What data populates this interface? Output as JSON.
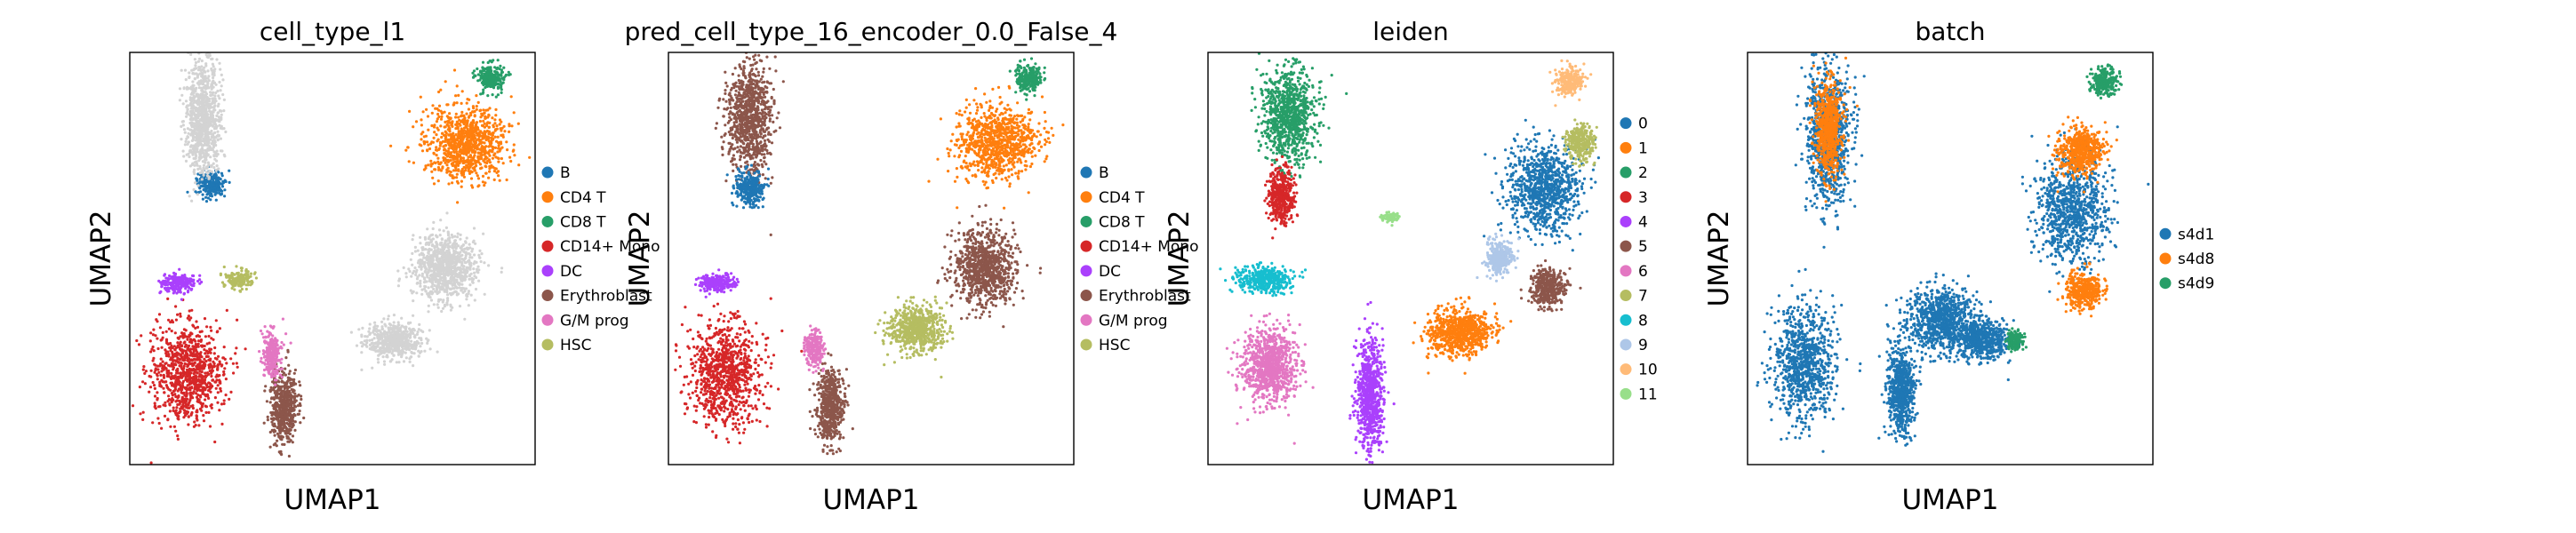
{
  "figure": {
    "background": "#ffffff"
  },
  "chart_data": [
    {
      "type": "scatter",
      "title": "cell_type_l1",
      "xlabel": "UMAP1",
      "ylabel": "UMAP2",
      "legend_position": "right",
      "grid": false,
      "categories": [
        "B",
        "CD4 T",
        "CD8 T",
        "CD14+ Mono",
        "DC",
        "Erythroblast",
        "G/M prog",
        "HSC"
      ],
      "colors": [
        "#1f77b4",
        "#ff7f0e",
        "#279e68",
        "#d62728",
        "#aa40fc",
        "#8c564b",
        "#e377c2",
        "#b5bd61"
      ],
      "clusters": [
        {
          "category": "B",
          "x": 0.2,
          "y": 0.68,
          "rx": 0.03,
          "ry": 0.03
        },
        {
          "category": "CD4 T",
          "x": 0.83,
          "y": 0.78,
          "rx": 0.09,
          "ry": 0.08
        },
        {
          "category": "CD8 T",
          "x": 0.89,
          "y": 0.94,
          "rx": 0.03,
          "ry": 0.03
        },
        {
          "category": "CD14+ Mono",
          "x": 0.14,
          "y": 0.22,
          "rx": 0.08,
          "ry": 0.11
        },
        {
          "category": "DC",
          "x": 0.12,
          "y": 0.44,
          "rx": 0.04,
          "ry": 0.02
        },
        {
          "category": "Erythroblast",
          "x": 0.38,
          "y": 0.14,
          "rx": 0.03,
          "ry": 0.08
        },
        {
          "category": "G/M prog",
          "x": 0.35,
          "y": 0.27,
          "rx": 0.02,
          "ry": 0.05
        },
        {
          "category": "HSC",
          "x": 0.27,
          "y": 0.45,
          "rx": 0.03,
          "ry": 0.02
        },
        {
          "category": "other",
          "x": 0.18,
          "y": 0.84,
          "rx": 0.04,
          "ry": 0.12
        },
        {
          "category": "other",
          "x": 0.78,
          "y": 0.48,
          "rx": 0.07,
          "ry": 0.07
        },
        {
          "category": "other",
          "x": 0.65,
          "y": 0.3,
          "rx": 0.06,
          "ry": 0.04
        }
      ]
    },
    {
      "type": "scatter",
      "title": "pred_cell_type_16_encoder_0.0_False_4",
      "xlabel": "UMAP1",
      "ylabel": "UMAP2",
      "legend_position": "right",
      "grid": false,
      "categories": [
        "B",
        "CD4 T",
        "CD8 T",
        "CD14+ Mono",
        "DC",
        "Erythroblast",
        "G/M prog",
        "HSC"
      ],
      "colors": [
        "#1f77b4",
        "#ff7f0e",
        "#279e68",
        "#d62728",
        "#aa40fc",
        "#8c564b",
        "#e377c2",
        "#b5bd61"
      ],
      "clusters": [
        {
          "category": "Erythroblast",
          "x": 0.2,
          "y": 0.84,
          "rx": 0.05,
          "ry": 0.12
        },
        {
          "category": "B",
          "x": 0.2,
          "y": 0.67,
          "rx": 0.03,
          "ry": 0.04
        },
        {
          "category": "CD4 T",
          "x": 0.81,
          "y": 0.78,
          "rx": 0.09,
          "ry": 0.08
        },
        {
          "category": "CD8 T",
          "x": 0.89,
          "y": 0.94,
          "rx": 0.03,
          "ry": 0.03
        },
        {
          "category": "CD14+ Mono",
          "x": 0.14,
          "y": 0.22,
          "rx": 0.08,
          "ry": 0.11
        },
        {
          "category": "DC",
          "x": 0.12,
          "y": 0.44,
          "rx": 0.04,
          "ry": 0.02
        },
        {
          "category": "Erythroblast",
          "x": 0.78,
          "y": 0.48,
          "rx": 0.07,
          "ry": 0.08
        },
        {
          "category": "Erythroblast",
          "x": 0.4,
          "y": 0.14,
          "rx": 0.03,
          "ry": 0.08
        },
        {
          "category": "HSC",
          "x": 0.61,
          "y": 0.33,
          "rx": 0.06,
          "ry": 0.05
        },
        {
          "category": "G/M prog",
          "x": 0.36,
          "y": 0.28,
          "rx": 0.02,
          "ry": 0.04
        }
      ]
    },
    {
      "type": "scatter",
      "title": "leiden",
      "xlabel": "UMAP1",
      "ylabel": "UMAP2",
      "legend_position": "right",
      "grid": false,
      "categories": [
        "0",
        "1",
        "2",
        "3",
        "4",
        "5",
        "6",
        "7",
        "8",
        "9",
        "10",
        "11"
      ],
      "colors": [
        "#1f77b4",
        "#ff7f0e",
        "#279e68",
        "#d62728",
        "#aa40fc",
        "#8c564b",
        "#e377c2",
        "#b5bd61",
        "#17becf",
        "#aec7e8",
        "#ffbb78",
        "#98df8a"
      ],
      "clusters": [
        {
          "category": "0",
          "x": 0.83,
          "y": 0.67,
          "rx": 0.08,
          "ry": 0.1
        },
        {
          "category": "1",
          "x": 0.62,
          "y": 0.32,
          "rx": 0.07,
          "ry": 0.05
        },
        {
          "category": "2",
          "x": 0.2,
          "y": 0.85,
          "rx": 0.06,
          "ry": 0.1
        },
        {
          "category": "3",
          "x": 0.18,
          "y": 0.65,
          "rx": 0.03,
          "ry": 0.06
        },
        {
          "category": "4",
          "x": 0.4,
          "y": 0.17,
          "rx": 0.03,
          "ry": 0.12
        },
        {
          "category": "5",
          "x": 0.84,
          "y": 0.43,
          "rx": 0.04,
          "ry": 0.04
        },
        {
          "category": "6",
          "x": 0.15,
          "y": 0.24,
          "rx": 0.06,
          "ry": 0.08
        },
        {
          "category": "7",
          "x": 0.92,
          "y": 0.78,
          "rx": 0.03,
          "ry": 0.04
        },
        {
          "category": "8",
          "x": 0.14,
          "y": 0.45,
          "rx": 0.06,
          "ry": 0.03
        },
        {
          "category": "9",
          "x": 0.72,
          "y": 0.5,
          "rx": 0.03,
          "ry": 0.04
        },
        {
          "category": "10",
          "x": 0.89,
          "y": 0.93,
          "rx": 0.03,
          "ry": 0.03
        },
        {
          "category": "11",
          "x": 0.45,
          "y": 0.6,
          "rx": 0.02,
          "ry": 0.01
        }
      ]
    },
    {
      "type": "scatter",
      "title": "batch",
      "xlabel": "UMAP1",
      "ylabel": "UMAP2",
      "legend_position": "right",
      "grid": false,
      "categories": [
        "s4d1",
        "s4d8",
        "s4d9"
      ],
      "colors": [
        "#1f77b4",
        "#ff7f0e",
        "#279e68"
      ],
      "clusters": [
        {
          "category": "s4d1",
          "x": 0.2,
          "y": 0.8,
          "rx": 0.05,
          "ry": 0.15
        },
        {
          "category": "s4d1",
          "x": 0.8,
          "y": 0.62,
          "rx": 0.08,
          "ry": 0.12
        },
        {
          "category": "s4d1",
          "x": 0.14,
          "y": 0.25,
          "rx": 0.07,
          "ry": 0.12
        },
        {
          "category": "s4d1",
          "x": 0.48,
          "y": 0.35,
          "rx": 0.08,
          "ry": 0.07
        },
        {
          "category": "s4d1",
          "x": 0.58,
          "y": 0.3,
          "rx": 0.06,
          "ry": 0.04
        },
        {
          "category": "s4d1",
          "x": 0.38,
          "y": 0.18,
          "rx": 0.03,
          "ry": 0.1
        },
        {
          "category": "s4d8",
          "x": 0.82,
          "y": 0.76,
          "rx": 0.05,
          "ry": 0.05
        },
        {
          "category": "s4d8",
          "x": 0.83,
          "y": 0.42,
          "rx": 0.04,
          "ry": 0.04
        },
        {
          "category": "s4d8",
          "x": 0.2,
          "y": 0.82,
          "rx": 0.03,
          "ry": 0.1
        },
        {
          "category": "s4d9",
          "x": 0.88,
          "y": 0.93,
          "rx": 0.03,
          "ry": 0.03
        },
        {
          "category": "s4d9",
          "x": 0.66,
          "y": 0.3,
          "rx": 0.02,
          "ry": 0.02
        }
      ]
    }
  ]
}
